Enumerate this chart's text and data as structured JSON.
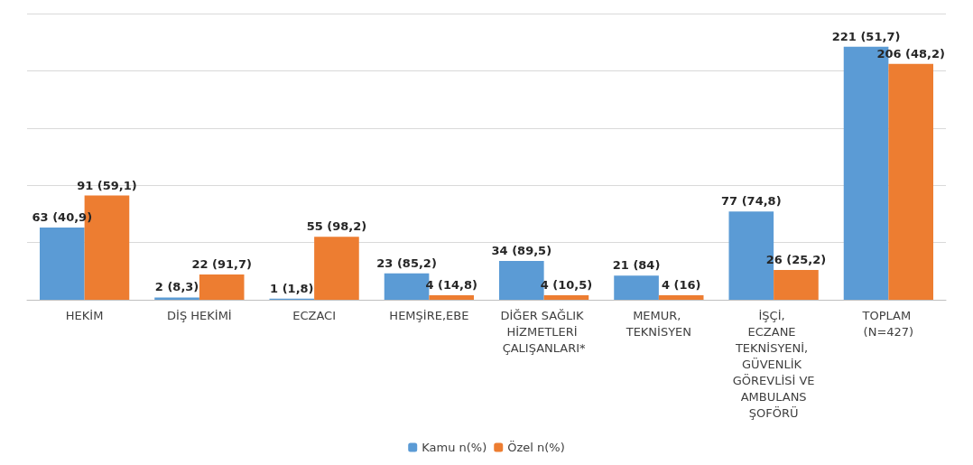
{
  "chart_data": {
    "type": "bar",
    "categories": [
      "HEKİM",
      "DİŞ HEKİMİ",
      "ECZACI",
      "HEMŞİRE,EBE",
      "DİĞER SAĞLIK HİZMETLERİ ÇALIŞANLARI*",
      "MEMUR, TEKNİSYEN",
      "İŞÇİ, ECZANE TEKNİSYENİ, GÜVENLİK GÖREVLİSİ VE AMBULANS ŞOFÖRÜ",
      "TOPLAM (N=427)"
    ],
    "series": [
      {
        "name": "Kamu n(%)",
        "color": "#5b9bd5",
        "values": [
          63,
          2,
          1,
          23,
          34,
          21,
          77,
          221
        ],
        "value_labels": [
          "63 (40,9)",
          "2 (8,3)",
          "1 (1,8)",
          "23 (85,2)",
          "34 (89,5)",
          "21 (84)",
          "77 (74,8)",
          "221 (51,7)"
        ]
      },
      {
        "name": "Özel n(%)",
        "color": "#ed7d31",
        "values": [
          91,
          22,
          55,
          4,
          4,
          4,
          26,
          206
        ],
        "value_labels": [
          "91 (59,1)",
          "22 (91,7)",
          "55 (98,2)",
          "4 (14,8)",
          "4 (10,5)",
          "4 (16)",
          "26 (25,2)",
          "206 (48,2)"
        ]
      }
    ],
    "ylim": [
      0,
      250
    ],
    "yticks": [
      {
        "value": 0,
        "label": null
      },
      {
        "value": 50,
        "label": null
      },
      {
        "value": 100,
        "label": null
      },
      {
        "value": 150,
        "label": null
      },
      {
        "value": 200,
        "label": null
      },
      {
        "value": 250,
        "label": null
      }
    ],
    "grid": "y",
    "legend": "bottom",
    "tick_labels": "x"
  }
}
